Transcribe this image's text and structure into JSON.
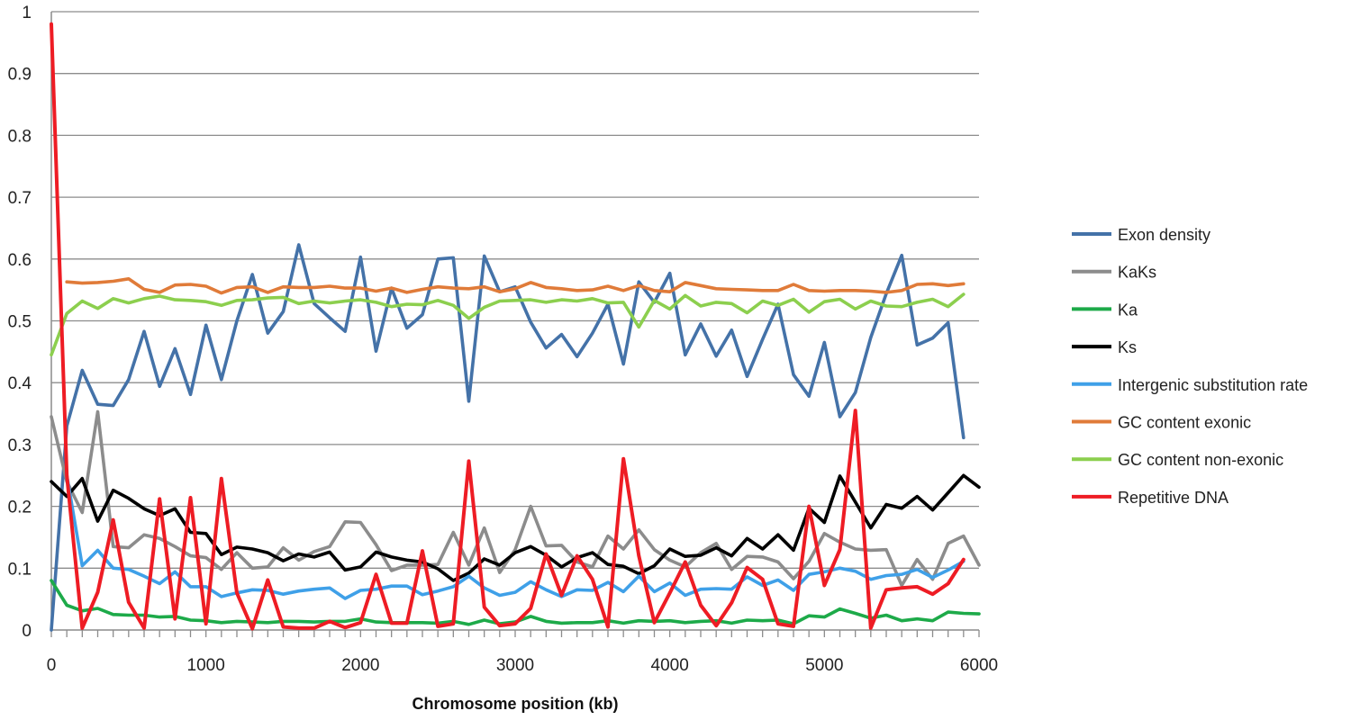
{
  "chart_data": {
    "type": "line",
    "title": "",
    "xlabel": "Chromosome position (kb)",
    "ylabel": "",
    "xlim": [
      0,
      6000
    ],
    "ylim": [
      0,
      1
    ],
    "grid": "horizontal",
    "legend_position": "right",
    "x_ticks": [
      "0",
      "1000",
      "2000",
      "3000",
      "4000",
      "5000",
      "6000"
    ],
    "y_ticks": [
      "0",
      "0.1",
      "0.2",
      "0.3",
      "0.4",
      "0.5",
      "0.6",
      "0.7",
      "0.8",
      "0.9",
      "1"
    ],
    "x": [
      0,
      100,
      200,
      300,
      400,
      500,
      600,
      700,
      800,
      900,
      1000,
      1100,
      1200,
      1300,
      1400,
      1500,
      1600,
      1700,
      1800,
      1900,
      2000,
      2100,
      2200,
      2300,
      2400,
      2500,
      2600,
      2700,
      2800,
      2900,
      3000,
      3100,
      3200,
      3300,
      3400,
      3500,
      3600,
      3700,
      3800,
      3900,
      4000,
      4100,
      4200,
      4300,
      4400,
      4500,
      4600,
      4700,
      4800,
      4900,
      5000,
      5100,
      5200,
      5300,
      5400,
      5500,
      5600,
      5700,
      5800,
      5900,
      6000
    ],
    "series": [
      {
        "name": "Exon density",
        "color": "#4472a8",
        "values": [
          0,
          0.33,
          0.42,
          0.365,
          0.363,
          0.405,
          0.483,
          0.394,
          0.455,
          0.381,
          0.493,
          0.405,
          0.5,
          0.575,
          0.48,
          0.515,
          0.623,
          0.528,
          0.505,
          0.483,
          0.603,
          0.451,
          0.553,
          0.488,
          0.51,
          0.6,
          0.602,
          0.37,
          0.605,
          0.547,
          0.555,
          0.498,
          0.456,
          0.478,
          0.442,
          0.48,
          0.527,
          0.43,
          0.563,
          0.53,
          0.577,
          0.445,
          0.495,
          0.443,
          0.485,
          0.41,
          0.47,
          0.527,
          0.413,
          0.378,
          0.465,
          0.345,
          0.384,
          0.473,
          0.544,
          0.606,
          0.461,
          0.472,
          0.497,
          0.311,
          null
        ]
      },
      {
        "name": "KaKs",
        "color": "#8c8c8c",
        "values": [
          0.345,
          0.24,
          0.19,
          0.353,
          0.135,
          0.133,
          0.154,
          0.148,
          0.135,
          0.12,
          0.117,
          0.098,
          0.125,
          0.1,
          0.102,
          0.133,
          0.113,
          0.127,
          0.135,
          0.175,
          0.174,
          0.138,
          0.096,
          0.105,
          0.105,
          0.106,
          0.158,
          0.105,
          0.165,
          0.093,
          0.13,
          0.2,
          0.136,
          0.137,
          0.11,
          0.102,
          0.152,
          0.131,
          0.162,
          0.13,
          0.113,
          0.102,
          0.125,
          0.14,
          0.098,
          0.119,
          0.118,
          0.11,
          0.083,
          0.111,
          0.156,
          0.142,
          0.131,
          0.129,
          0.13,
          0.072,
          0.114,
          0.082,
          0.14,
          0.152,
          0.105
        ]
      },
      {
        "name": "Ka",
        "color": "#1daa49",
        "values": [
          0.08,
          0.04,
          0.031,
          0.035,
          0.025,
          0.024,
          0.024,
          0.021,
          0.022,
          0.016,
          0.015,
          0.012,
          0.014,
          0.013,
          0.012,
          0.014,
          0.014,
          0.013,
          0.014,
          0.014,
          0.018,
          0.013,
          0.012,
          0.012,
          0.012,
          0.011,
          0.014,
          0.009,
          0.016,
          0.01,
          0.013,
          0.022,
          0.014,
          0.011,
          0.012,
          0.012,
          0.015,
          0.011,
          0.015,
          0.014,
          0.015,
          0.012,
          0.014,
          0.015,
          0.011,
          0.016,
          0.015,
          0.016,
          0.01,
          0.023,
          0.021,
          0.034,
          0.027,
          0.019,
          0.024,
          0.015,
          0.018,
          0.015,
          0.029,
          0.027,
          0.026
        ]
      },
      {
        "name": "Ks",
        "color": "#000000",
        "values": [
          0.24,
          0.216,
          0.245,
          0.176,
          0.226,
          0.213,
          0.196,
          0.185,
          0.196,
          0.158,
          0.156,
          0.122,
          0.134,
          0.131,
          0.125,
          0.112,
          0.123,
          0.118,
          0.126,
          0.097,
          0.102,
          0.126,
          0.118,
          0.113,
          0.11,
          0.099,
          0.08,
          0.092,
          0.115,
          0.105,
          0.125,
          0.135,
          0.121,
          0.102,
          0.117,
          0.125,
          0.106,
          0.103,
          0.091,
          0.104,
          0.131,
          0.119,
          0.121,
          0.133,
          0.12,
          0.148,
          0.131,
          0.154,
          0.129,
          0.197,
          0.174,
          0.249,
          0.207,
          0.165,
          0.203,
          0.197,
          0.216,
          0.194,
          0.222,
          0.25,
          0.231
        ]
      },
      {
        "name": "Intergenic substitution rate",
        "color": "#3fa0e8",
        "values": [
          null,
          0.25,
          0.104,
          0.129,
          0.1,
          0.098,
          0.087,
          0.075,
          0.094,
          0.07,
          0.07,
          0.054,
          0.06,
          0.065,
          0.064,
          0.058,
          0.063,
          0.066,
          0.068,
          0.051,
          0.064,
          0.066,
          0.071,
          0.071,
          0.057,
          0.063,
          0.07,
          0.087,
          0.068,
          0.056,
          0.061,
          0.078,
          0.065,
          0.054,
          0.065,
          0.064,
          0.077,
          0.062,
          0.087,
          0.062,
          0.076,
          0.056,
          0.066,
          0.067,
          0.066,
          0.086,
          0.072,
          0.081,
          0.064,
          0.09,
          0.094,
          0.1,
          0.095,
          0.082,
          0.088,
          0.09,
          0.098,
          0.085,
          0.097,
          0.111,
          null
        ]
      },
      {
        "name": "GC content exonic",
        "color": "#e07b39",
        "values": [
          null,
          0.563,
          0.561,
          0.562,
          0.564,
          0.568,
          0.551,
          0.546,
          0.558,
          0.559,
          0.556,
          0.545,
          0.554,
          0.555,
          0.546,
          0.555,
          0.554,
          0.554,
          0.556,
          0.553,
          0.553,
          0.548,
          0.553,
          0.546,
          0.551,
          0.555,
          0.553,
          0.552,
          0.555,
          0.547,
          0.552,
          0.562,
          0.554,
          0.552,
          0.549,
          0.55,
          0.556,
          0.549,
          0.557,
          0.549,
          0.547,
          0.562,
          0.557,
          0.552,
          0.551,
          0.55,
          0.549,
          0.549,
          0.559,
          0.549,
          0.548,
          0.549,
          0.549,
          0.548,
          0.546,
          0.549,
          0.559,
          0.56,
          0.557,
          0.56,
          null
        ]
      },
      {
        "name": "GC content non-exonic",
        "color": "#8ccf4e",
        "values": [
          0.445,
          0.512,
          0.532,
          0.52,
          0.536,
          0.529,
          0.536,
          0.54,
          0.534,
          0.533,
          0.531,
          0.525,
          0.533,
          0.534,
          0.537,
          0.538,
          0.528,
          0.532,
          0.529,
          0.532,
          0.534,
          0.53,
          0.523,
          0.527,
          0.526,
          0.533,
          0.525,
          0.504,
          0.522,
          0.532,
          0.533,
          0.534,
          0.53,
          0.534,
          0.532,
          0.536,
          0.529,
          0.53,
          0.49,
          0.533,
          0.519,
          0.541,
          0.524,
          0.53,
          0.528,
          0.513,
          0.532,
          0.525,
          0.535,
          0.514,
          0.531,
          0.535,
          0.519,
          0.532,
          0.524,
          0.523,
          0.53,
          0.535,
          0.523,
          0.543,
          null
        ]
      },
      {
        "name": "Repetitive DNA",
        "color": "#ee1c24",
        "values": [
          0.98,
          0.25,
          0.003,
          0.061,
          0.178,
          0.045,
          0.003,
          0.212,
          0.018,
          0.214,
          0.01,
          0.245,
          0.06,
          0.002,
          0.081,
          0.005,
          0.003,
          0.003,
          0.014,
          0.004,
          0.012,
          0.09,
          0.011,
          0.011,
          0.128,
          0.006,
          0.01,
          0.273,
          0.037,
          0.007,
          0.01,
          0.035,
          0.123,
          0.056,
          0.12,
          0.082,
          0.005,
          0.277,
          0.12,
          0.012,
          0.06,
          0.11,
          0.04,
          0.007,
          0.044,
          0.101,
          0.082,
          0.01,
          0.006,
          0.2,
          0.072,
          0.13,
          0.355,
          0.003,
          0.065,
          0.068,
          0.07,
          0.058,
          0.075,
          0.114,
          null
        ]
      }
    ]
  }
}
